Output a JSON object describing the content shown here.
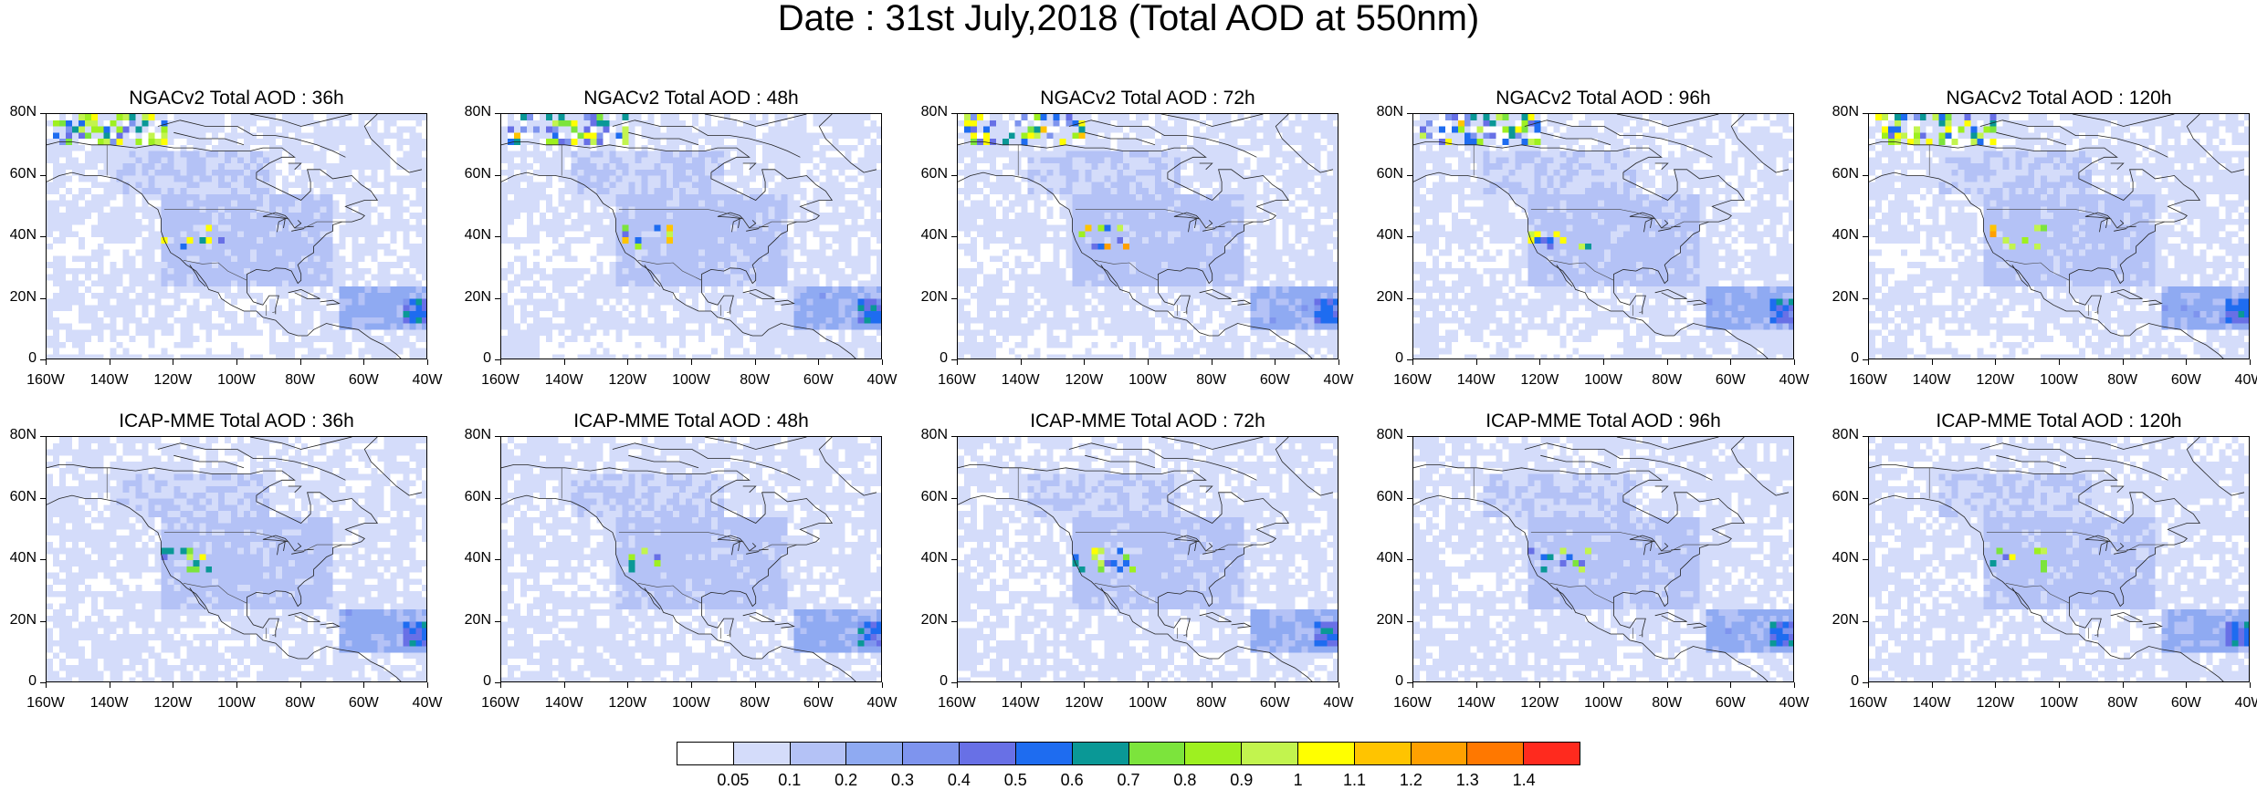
{
  "title": "Date : 31st July,2018 (Total AOD at 550nm)",
  "lat_labels": [
    "80N",
    "60N",
    "40N",
    "20N",
    "0"
  ],
  "lon_labels": [
    "160W",
    "140W",
    "120W",
    "100W",
    "80W",
    "60W",
    "40W"
  ],
  "panels": [
    {
      "title": "NGACv2 Total AOD : 36h",
      "row": 0,
      "col": 0
    },
    {
      "title": "NGACv2 Total AOD : 48h",
      "row": 0,
      "col": 1
    },
    {
      "title": "NGACv2 Total AOD : 72h",
      "row": 0,
      "col": 2
    },
    {
      "title": "NGACv2 Total AOD : 96h",
      "row": 0,
      "col": 3
    },
    {
      "title": "NGACv2 Total AOD : 120h",
      "row": 0,
      "col": 4
    },
    {
      "title": "ICAP-MME Total AOD : 36h",
      "row": 1,
      "col": 0
    },
    {
      "title": "ICAP-MME Total AOD : 48h",
      "row": 1,
      "col": 1
    },
    {
      "title": "ICAP-MME Total AOD : 72h",
      "row": 1,
      "col": 2
    },
    {
      "title": "ICAP-MME Total AOD : 96h",
      "row": 1,
      "col": 3
    },
    {
      "title": "ICAP-MME Total AOD : 120h",
      "row": 1,
      "col": 4
    }
  ],
  "colorbar": {
    "colors": [
      "#ffffff",
      "#d4dcfa",
      "#b4c2f6",
      "#8faaf2",
      "#7e94ee",
      "#6870e6",
      "#1e6cf0",
      "#0a9896",
      "#7ce43c",
      "#9ef020",
      "#c2f44e",
      "#ffff00",
      "#ffc400",
      "#ffa000",
      "#ff7800",
      "#ff2a1e"
    ],
    "labels": [
      "0.05",
      "0.1",
      "0.2",
      "0.3",
      "0.4",
      "0.5",
      "0.6",
      "0.7",
      "0.8",
      "0.9",
      "1",
      "1.1",
      "1.2",
      "1.3",
      "1.4"
    ]
  }
}
